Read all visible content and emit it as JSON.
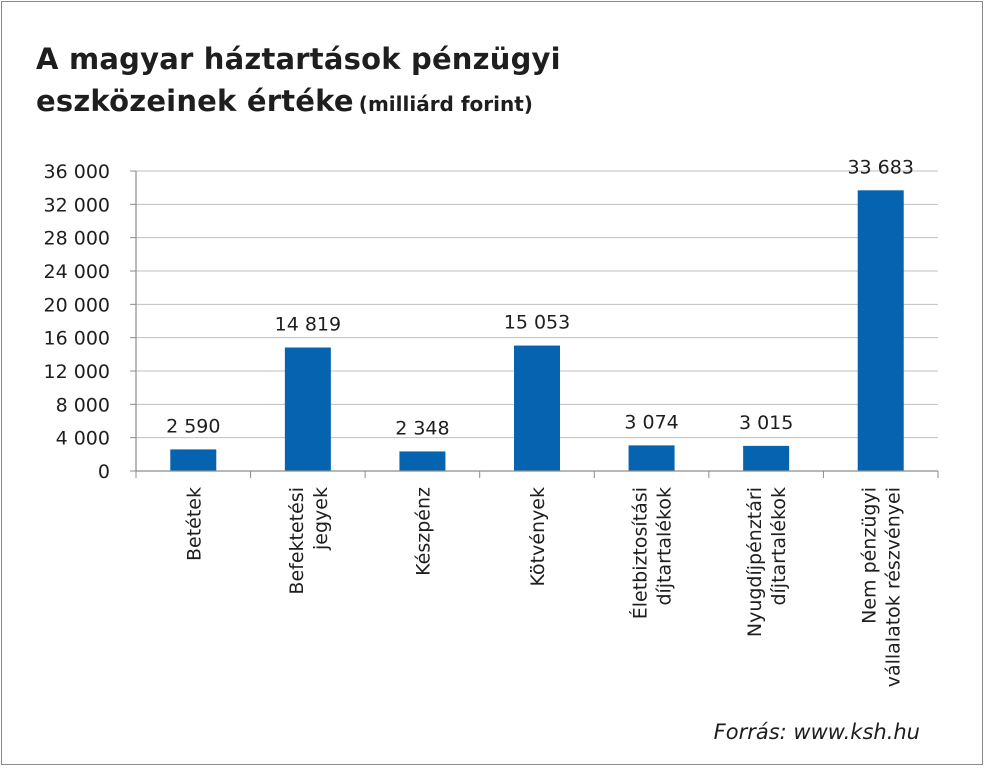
{
  "title": {
    "main_line1": "A magyar háztartások pénzügyi",
    "main_line2": "eszközeinek értéke",
    "unit": "(milliárd forint)"
  },
  "source": "Forrás: www.ksh.hu",
  "colors": {
    "bar": "#0563B0",
    "grid": "#bfbfbf",
    "axis": "#8c8c8c",
    "text": "#1e1e1e"
  },
  "chart_data": {
    "type": "bar",
    "categories": [
      [
        "Betétek"
      ],
      [
        "Befektetési",
        "jegyek"
      ],
      [
        "Készpénz"
      ],
      [
        "Kötvények"
      ],
      [
        "Életbiztosítási",
        "díjtartalékok"
      ],
      [
        "Nyugdíjpénztári",
        "díjtartalékok"
      ],
      [
        "Nem pénzügyi",
        "vállalatok részvényei"
      ]
    ],
    "values": [
      2590,
      14819,
      2348,
      15053,
      3074,
      3015,
      33683
    ],
    "data_labels": [
      "2 590",
      "14 819",
      "2 348",
      "15 053",
      "3 074",
      "3 015",
      "33 683"
    ],
    "ylim": [
      0,
      36000
    ],
    "yticks": [
      0,
      4000,
      8000,
      12000,
      16000,
      20000,
      24000,
      28000,
      32000,
      36000
    ],
    "ytick_labels": [
      "0",
      "4 000",
      "8 000",
      "12 000",
      "16 000",
      "20 000",
      "24 000",
      "28 000",
      "32 000",
      "36 000"
    ],
    "grid": true,
    "legend": "none"
  }
}
